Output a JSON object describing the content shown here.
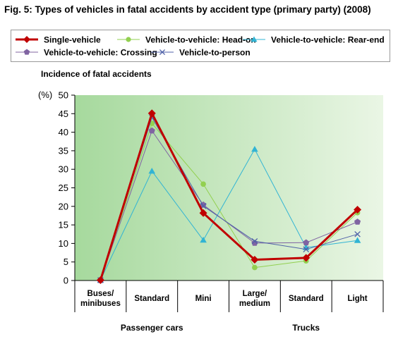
{
  "title": "Fig. 5: Types of vehicles in fatal accidents by accident type (primary party) (2008)",
  "chart_data": {
    "type": "line",
    "ylabel": "Incidence of fatal accidents",
    "yunit": "(%)",
    "ylim": [
      0,
      50
    ],
    "yticks": [
      0,
      5,
      10,
      15,
      20,
      25,
      30,
      35,
      40,
      45,
      50
    ],
    "categories": [
      {
        "lines": [
          "Buses/",
          "minibuses"
        ]
      },
      {
        "lines": [
          "Standard"
        ]
      },
      {
        "lines": [
          "Mini"
        ]
      },
      {
        "lines": [
          "Large/",
          "medium"
        ]
      },
      {
        "lines": [
          "Standard"
        ]
      },
      {
        "lines": [
          "Light"
        ]
      }
    ],
    "groups": [
      {
        "label": "Passenger cars",
        "from": 0,
        "to": 2
      },
      {
        "label": "Trucks",
        "from": 3,
        "to": 5
      }
    ],
    "grid": false,
    "legend_position": "top",
    "series": [
      {
        "name": "Single-vehicle",
        "color": "#c00000",
        "marker": "diamond",
        "width": 3,
        "values": [
          0.1,
          45.1,
          18.2,
          5.6,
          6.1,
          19.1
        ]
      },
      {
        "name": "Vehicle-to-vehicle: Head-on",
        "color": "#92d050",
        "marker": "circle",
        "width": 1,
        "values": [
          0.1,
          42.4,
          26.0,
          3.5,
          5.3,
          18.3
        ]
      },
      {
        "name": "Vehicle-to-vehicle: Rear-end",
        "color": "#31b4d4",
        "marker": "triangle",
        "width": 1,
        "values": [
          0.1,
          29.5,
          10.9,
          35.4,
          8.9,
          10.8
        ]
      },
      {
        "name": "Vehicle-to-vehicle: Crossing",
        "color": "#8064a2",
        "marker": "pentagon",
        "width": 1,
        "values": [
          0.1,
          40.4,
          20.4,
          10.1,
          10.2,
          15.8
        ]
      },
      {
        "name": "Vehicle-to-person",
        "color": "#5062a8",
        "marker": "x",
        "width": 1,
        "values": [
          0.1,
          44.0,
          20.1,
          10.6,
          8.4,
          12.5
        ]
      }
    ]
  }
}
